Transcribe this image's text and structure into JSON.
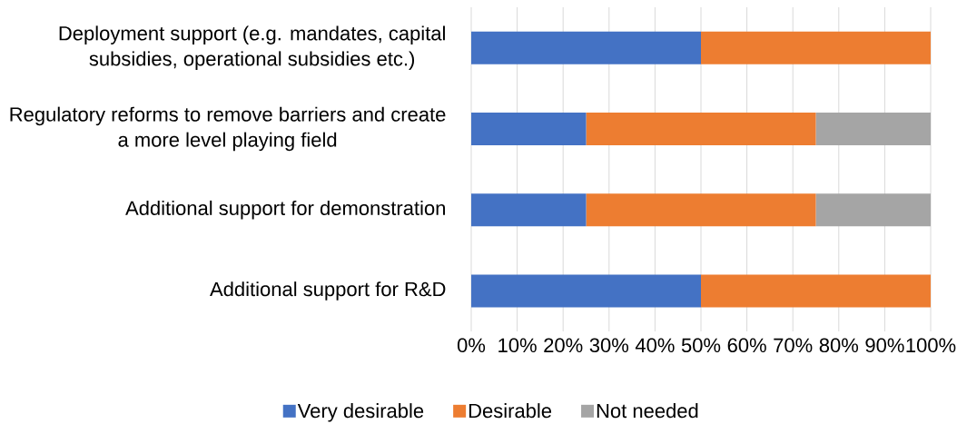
{
  "chart_data": {
    "type": "bar",
    "orientation": "horizontal",
    "stacked": true,
    "categories": [
      "Deployment support (e.g. mandates, capital subsidies, operational subsidies etc.)",
      "Regulatory reforms to remove barriers and create a more level playing field",
      "Additional support for demonstration",
      "Additional support for R&D"
    ],
    "series": [
      {
        "name": "Very desirable",
        "color": "#4472c4",
        "values": [
          50,
          25,
          25,
          50
        ]
      },
      {
        "name": "Desirable",
        "color": "#ed7d31",
        "values": [
          50,
          50,
          50,
          50
        ]
      },
      {
        "name": "Not needed",
        "color": "#a5a5a5",
        "values": [
          0,
          25,
          25,
          0
        ]
      }
    ],
    "xlim": [
      0,
      100
    ],
    "xticks": [
      {
        "value": 0,
        "label": "0%"
      },
      {
        "value": 10,
        "label": "10%"
      },
      {
        "value": 20,
        "label": "20%"
      },
      {
        "value": 30,
        "label": "30%"
      },
      {
        "value": 40,
        "label": "40%"
      },
      {
        "value": 50,
        "label": "50%"
      },
      {
        "value": 60,
        "label": "60%"
      },
      {
        "value": 70,
        "label": "70%"
      },
      {
        "value": 80,
        "label": "80%"
      },
      {
        "value": 90,
        "label": "90%"
      },
      {
        "value": 100,
        "label": "100%"
      }
    ],
    "grid": "x",
    "legend": "bottom"
  }
}
